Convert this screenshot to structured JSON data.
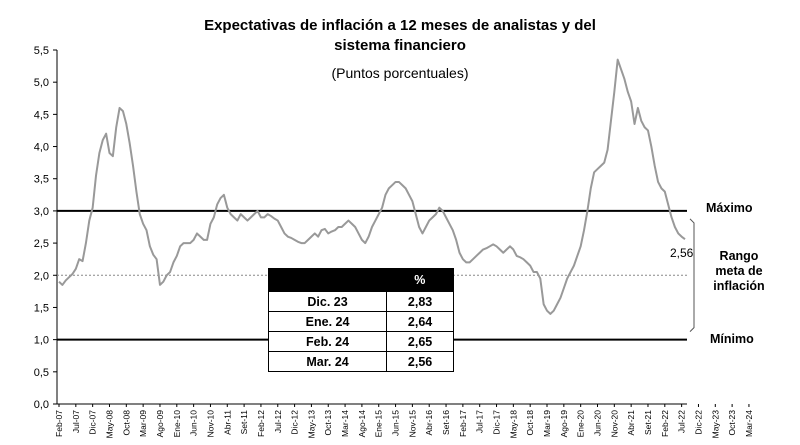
{
  "chart_data": {
    "type": "line",
    "title_line1": "Expectativas de inflación a 12 meses de analistas y del",
    "title_line2": "sistema financiero",
    "subtitle": "(Puntos porcentuales)",
    "ylim": [
      0,
      5.5
    ],
    "ytick_labels": [
      "0,0",
      "0,5",
      "1,0",
      "1,5",
      "2,0",
      "2,5",
      "3,0",
      "3,5",
      "4,0",
      "4,5",
      "5,0",
      "5,5"
    ],
    "xtick_labels": [
      "Feb-07",
      "Jul-07",
      "Dic-07",
      "May-08",
      "Oct-08",
      "Mar-09",
      "Ago-09",
      "Ene-10",
      "Jun-10",
      "Nov-10",
      "Abr-11",
      "Set-11",
      "Feb-12",
      "Jul-12",
      "Dic-12",
      "May-13",
      "Oct-13",
      "Mar-14",
      "Ago-14",
      "Ene-15",
      "Jun-15",
      "Nov-15",
      "Abr-16",
      "Set-16",
      "Feb-17",
      "Jul-17",
      "Dic-17",
      "May-18",
      "Oct-18",
      "Mar-19",
      "Ago-19",
      "Ene-20",
      "Jun-20",
      "Nov-20",
      "Abr-21",
      "Set-21",
      "Feb-22",
      "Jul-22",
      "Dic-22",
      "May-23",
      "Oct-23",
      "Mar-24"
    ],
    "series": [
      {
        "values": [
          1.9,
          1.85,
          1.92,
          1.97,
          2.02,
          2.1,
          2.25,
          2.22,
          2.5,
          2.85,
          3.05,
          3.55,
          3.9,
          4.1,
          4.2,
          3.9,
          3.85,
          4.3,
          4.6,
          4.55,
          4.35,
          4.05,
          3.7,
          3.3,
          2.95,
          2.8,
          2.7,
          2.45,
          2.32,
          2.25,
          1.85,
          1.9,
          2.0,
          2.05,
          2.2,
          2.3,
          2.45,
          2.5,
          2.5,
          2.5,
          2.55,
          2.65,
          2.6,
          2.55,
          2.55,
          2.8,
          2.9,
          3.1,
          3.2,
          3.25,
          3.05,
          2.95,
          2.9,
          2.85,
          2.95,
          2.9,
          2.85,
          2.9,
          2.95,
          3.0,
          2.9,
          2.9,
          2.95,
          2.92,
          2.88,
          2.85,
          2.75,
          2.65,
          2.6,
          2.58,
          2.55,
          2.52,
          2.5,
          2.5,
          2.55,
          2.6,
          2.65,
          2.6,
          2.7,
          2.72,
          2.65,
          2.68,
          2.7,
          2.75,
          2.75,
          2.8,
          2.85,
          2.8,
          2.75,
          2.65,
          2.55,
          2.5,
          2.6,
          2.75,
          2.85,
          2.95,
          3.05,
          3.25,
          3.35,
          3.4,
          3.45,
          3.45,
          3.4,
          3.35,
          3.25,
          3.15,
          2.95,
          2.75,
          2.65,
          2.75,
          2.85,
          2.9,
          2.95,
          3.05,
          3.0,
          2.9,
          2.8,
          2.7,
          2.55,
          2.35,
          2.25,
          2.2,
          2.2,
          2.25,
          2.3,
          2.35,
          2.4,
          2.42,
          2.45,
          2.48,
          2.45,
          2.4,
          2.35,
          2.4,
          2.45,
          2.4,
          2.3,
          2.28,
          2.25,
          2.2,
          2.15,
          2.05,
          2.05,
          1.95,
          1.55,
          1.45,
          1.4,
          1.45,
          1.55,
          1.65,
          1.8,
          1.95,
          2.05,
          2.15,
          2.3,
          2.45,
          2.7,
          3.0,
          3.35,
          3.6,
          3.65,
          3.7,
          3.75,
          3.95,
          4.4,
          4.85,
          5.35,
          5.2,
          5.05,
          4.85,
          4.7,
          4.35,
          4.6,
          4.4,
          4.3,
          4.25,
          4.0,
          3.7,
          3.45,
          3.35,
          3.3,
          3.1,
          2.9,
          2.75,
          2.65,
          2.6,
          2.56
        ]
      }
    ],
    "reference_lines": {
      "max": 3.0,
      "target": 2.0,
      "min": 1.0
    },
    "legend_labels": {
      "max": "Máximo",
      "min": "Mínimo",
      "range": [
        "Rango",
        "meta de",
        "inflación"
      ]
    },
    "end_value_label": "2,56",
    "table": {
      "header": [
        "",
        "%"
      ],
      "rows": [
        [
          "Dic. 23",
          "2,83"
        ],
        [
          "Ene. 24",
          "2,64"
        ],
        [
          "Feb. 24",
          "2,65"
        ],
        [
          "Mar. 24",
          "2,56"
        ]
      ]
    }
  }
}
